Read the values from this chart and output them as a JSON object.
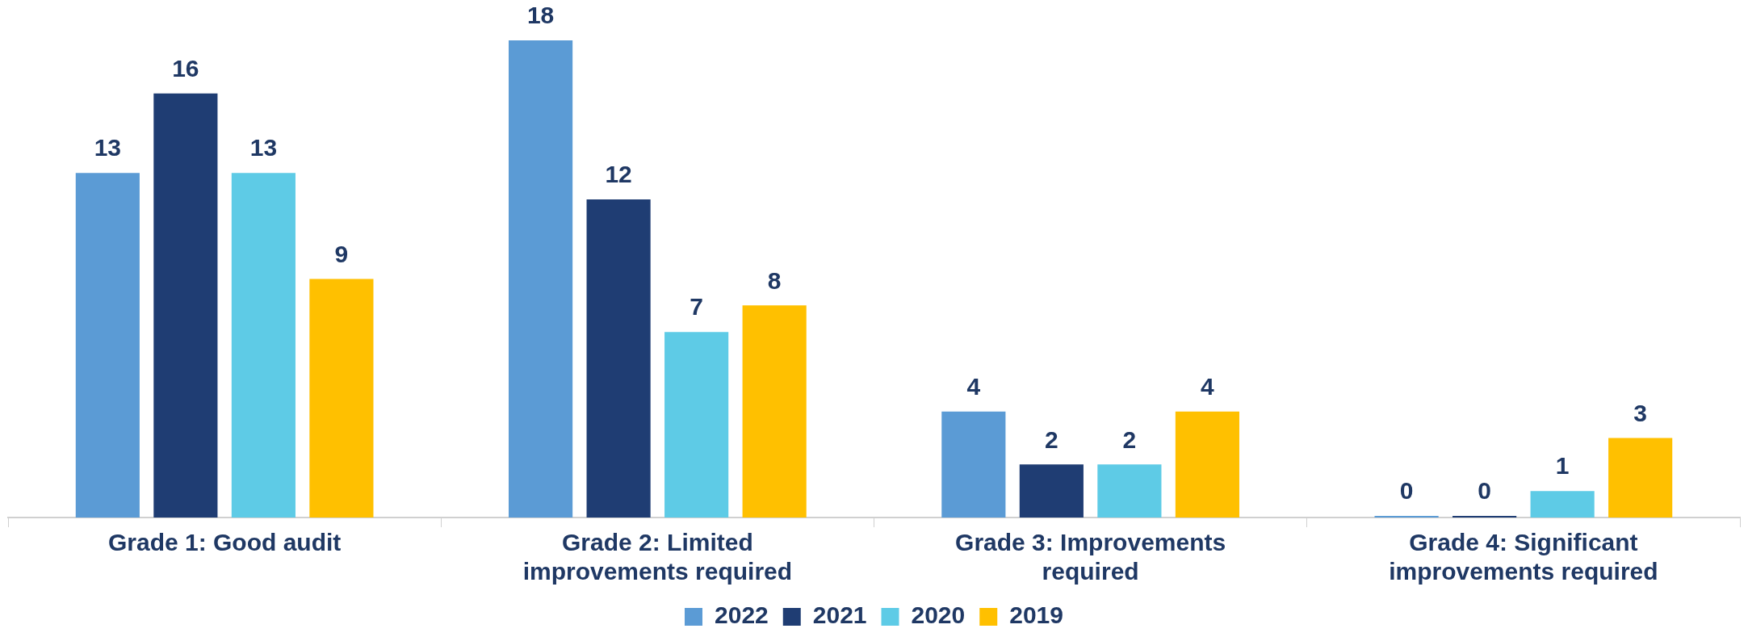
{
  "chart_data": {
    "type": "bar",
    "categories": [
      "Grade 1: Good audit",
      "Grade 2: Limited improvements required",
      "Grade 3: Improvements required",
      "Grade 4: Significant improvements required"
    ],
    "series": [
      {
        "name": "2022",
        "color": "#5b9bd5",
        "values": [
          13,
          18,
          4,
          0
        ]
      },
      {
        "name": "2021",
        "color": "#1f3d73",
        "values": [
          16,
          12,
          2,
          0
        ]
      },
      {
        "name": "2020",
        "color": "#5ecbe6",
        "values": [
          13,
          7,
          2,
          1
        ]
      },
      {
        "name": "2019",
        "color": "#ffc000",
        "values": [
          9,
          8,
          4,
          3
        ]
      }
    ],
    "data_labels": true,
    "legend": "bottom",
    "grid": false
  }
}
